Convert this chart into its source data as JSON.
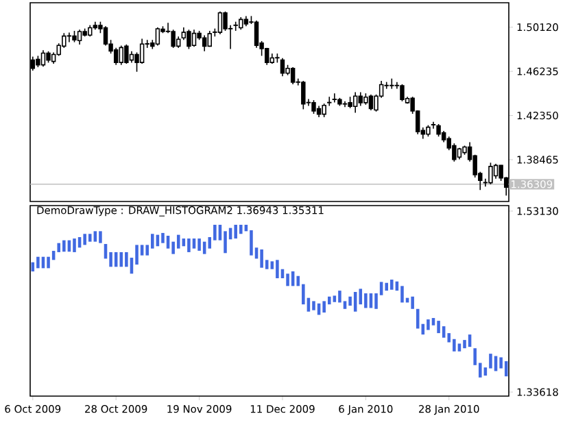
{
  "chart_data": [
    {
      "type": "candlestick",
      "color": "#000000",
      "categories": [
        null,
        null,
        null,
        null,
        null,
        null,
        null,
        null,
        null,
        null,
        null,
        null,
        null,
        null,
        null,
        null,
        null,
        null,
        null,
        null,
        null,
        null,
        null,
        null,
        null,
        null,
        null,
        null,
        null,
        null,
        null,
        null,
        null,
        null,
        null,
        null,
        null,
        null,
        null,
        null,
        null,
        null,
        null,
        null,
        null,
        null,
        null,
        null,
        null,
        null,
        null,
        null,
        null,
        null,
        null,
        null,
        null,
        null,
        null,
        null,
        null,
        null,
        null,
        null,
        null,
        null,
        null,
        null,
        null,
        null,
        null,
        null,
        null,
        null,
        null,
        null,
        null,
        null,
        null,
        null,
        null,
        null,
        null,
        null,
        null,
        null,
        null,
        null,
        null,
        null,
        null,
        null
      ],
      "tick_labels": "y",
      "ylim": [
        1.3479,
        1.5227
      ],
      "yticks": [
        {
          "value": 1.5012,
          "label": "1.50120"
        },
        {
          "value": 1.46235,
          "label": "1.46235"
        },
        {
          "value": 1.4235,
          "label": "1.42350"
        },
        {
          "value": 1.38465,
          "label": "1.38465"
        }
      ],
      "ref_lines": [
        {
          "axis": "y",
          "value": 1.36309,
          "label": "1.36309",
          "color": "#c0c0c0"
        }
      ],
      "ohlc": [
        [
          1.4723,
          1.4753,
          1.463,
          1.465
        ],
        [
          1.473,
          1.476,
          1.466,
          1.4681
        ],
        [
          1.4681,
          1.481,
          1.4665,
          1.4784
        ],
        [
          1.4784,
          1.48,
          1.47,
          1.4723
        ],
        [
          1.4711,
          1.479,
          1.469,
          1.4772
        ],
        [
          1.4772,
          1.487,
          1.476,
          1.4852
        ],
        [
          1.4845,
          1.496,
          1.483,
          1.4934
        ],
        [
          1.4934,
          1.4965,
          1.488,
          1.4936
        ],
        [
          1.4934,
          1.498,
          1.488,
          1.4901
        ],
        [
          1.4894,
          1.499,
          1.486,
          1.4974
        ],
        [
          1.4974,
          1.5,
          1.493,
          1.4942
        ],
        [
          1.4942,
          1.503,
          1.493,
          1.5007
        ],
        [
          1.5028,
          1.506,
          1.499,
          1.5007
        ],
        [
          1.5028,
          1.506,
          1.496,
          1.4998
        ],
        [
          1.5007,
          1.502,
          1.485,
          1.4864
        ],
        [
          1.4864,
          1.49,
          1.478,
          1.4803
        ],
        [
          1.4812,
          1.483,
          1.468,
          1.4702
        ],
        [
          1.4702,
          1.485,
          1.468,
          1.4833
        ],
        [
          1.4845,
          1.486,
          1.469,
          1.4702
        ],
        [
          1.4723,
          1.48,
          1.47,
          1.4772
        ],
        [
          1.4772,
          1.479,
          1.462,
          1.4702
        ],
        [
          1.4702,
          1.491,
          1.469,
          1.4864
        ],
        [
          1.4864,
          1.49,
          1.483,
          1.4866
        ],
        [
          1.4873,
          1.49,
          1.482,
          1.4845
        ],
        [
          1.4864,
          1.501,
          1.485,
          1.4998
        ],
        [
          1.4995,
          1.502,
          1.496,
          1.4974
        ],
        [
          1.4974,
          1.505,
          1.496,
          1.4976
        ],
        [
          1.4974,
          1.499,
          1.483,
          1.4845
        ],
        [
          1.4845,
          1.493,
          1.483,
          1.4906
        ],
        [
          1.4918,
          1.501,
          1.49,
          1.4967
        ],
        [
          1.4974,
          1.499,
          1.482,
          1.4845
        ],
        [
          1.4852,
          1.499,
          1.484,
          1.4958
        ],
        [
          1.4958,
          1.498,
          1.49,
          1.4918
        ],
        [
          1.4918,
          1.494,
          1.48,
          1.4845
        ],
        [
          1.4845,
          1.498,
          1.484,
          1.4955
        ],
        [
          1.4967,
          1.5,
          1.493,
          1.4969
        ],
        [
          1.4967,
          1.515,
          1.495,
          1.5138
        ],
        [
          1.5138,
          1.515,
          1.498,
          1.4998
        ],
        [
          1.4998,
          1.503,
          1.482,
          1.5
        ],
        [
          1.5028,
          1.506,
          1.498,
          1.503
        ],
        [
          1.5007,
          1.51,
          1.499,
          1.508
        ],
        [
          1.508,
          1.511,
          1.502,
          1.504
        ],
        [
          1.5056,
          1.511,
          1.504,
          1.5058
        ],
        [
          1.5056,
          1.507,
          1.483,
          1.4852
        ],
        [
          1.4873,
          1.489,
          1.476,
          1.4824
        ],
        [
          1.4824,
          1.483,
          1.468,
          1.4702
        ],
        [
          1.4702,
          1.478,
          1.469,
          1.4742
        ],
        [
          1.4742,
          1.478,
          1.47,
          1.4744
        ],
        [
          1.4723,
          1.474,
          1.458,
          1.4608
        ],
        [
          1.4608,
          1.468,
          1.459,
          1.465
        ],
        [
          1.465,
          1.466,
          1.451,
          1.4528
        ],
        [
          1.4528,
          1.456,
          1.45,
          1.453
        ],
        [
          1.4528,
          1.454,
          1.429,
          1.4336
        ],
        [
          1.4348,
          1.438,
          1.432,
          1.435
        ],
        [
          1.4348,
          1.437,
          1.425,
          1.4275
        ],
        [
          1.4296,
          1.432,
          1.422,
          1.4247
        ],
        [
          1.4247,
          1.434,
          1.422,
          1.4324
        ],
        [
          1.4348,
          1.44,
          1.432,
          1.435
        ],
        [
          1.4376,
          1.443,
          1.435,
          1.4378
        ],
        [
          1.4376,
          1.439,
          1.432,
          1.4336
        ],
        [
          1.4336,
          1.436,
          1.431,
          1.4338
        ],
        [
          1.4348,
          1.44,
          1.43,
          1.4315
        ],
        [
          1.4315,
          1.444,
          1.426,
          1.4406
        ],
        [
          1.4406,
          1.444,
          1.432,
          1.4348
        ],
        [
          1.4348,
          1.443,
          1.433,
          1.4397
        ],
        [
          1.4406,
          1.442,
          1.428,
          1.4296
        ],
        [
          1.4284,
          1.442,
          1.427,
          1.4406
        ],
        [
          1.4406,
          1.454,
          1.439,
          1.4507
        ],
        [
          1.4498,
          1.453,
          1.447,
          1.45
        ],
        [
          1.4498,
          1.456,
          1.447,
          1.45
        ],
        [
          1.4498,
          1.453,
          1.447,
          1.45
        ],
        [
          1.4498,
          1.451,
          1.436,
          1.4376
        ],
        [
          1.4348,
          1.44,
          1.434,
          1.4385
        ],
        [
          1.4388,
          1.44,
          1.425,
          1.4275
        ],
        [
          1.4275,
          1.428,
          1.407,
          1.4092
        ],
        [
          1.4104,
          1.413,
          1.403,
          1.4071
        ],
        [
          1.4071,
          1.415,
          1.405,
          1.4132
        ],
        [
          1.4153,
          1.418,
          1.412,
          1.4155
        ],
        [
          1.4144,
          1.416,
          1.405,
          1.4071
        ],
        [
          1.4083,
          1.41,
          1.4,
          1.4022
        ],
        [
          1.4031,
          1.405,
          1.393,
          1.3949
        ],
        [
          1.397,
          1.399,
          1.383,
          1.3848
        ],
        [
          1.3869,
          1.395,
          1.385,
          1.3942
        ],
        [
          1.3909,
          1.397,
          1.389,
          1.3958
        ],
        [
          1.3958,
          1.4,
          1.383,
          1.3848
        ],
        [
          1.3881,
          1.389,
          1.369,
          1.3714
        ],
        [
          1.3726,
          1.374,
          1.358,
          1.3665
        ],
        [
          1.3644,
          1.368,
          1.361,
          1.3646
        ],
        [
          1.3644,
          1.382,
          1.363,
          1.3787
        ],
        [
          1.3705,
          1.381,
          1.368,
          1.3796
        ],
        [
          1.3796,
          1.38,
          1.366,
          1.3686
        ],
        [
          1.3686,
          1.36943,
          1.35311,
          1.3604
        ]
      ]
    },
    {
      "type": "bar",
      "color": "#4169e1",
      "title": "DemoDrawType : DRAW_HISTOGRAM2 1.36943 1.35311",
      "categories": [
        "6 Oct 2009",
        null,
        null,
        null,
        null,
        null,
        null,
        null,
        null,
        null,
        null,
        null,
        null,
        null,
        null,
        null,
        "28 Oct 2009",
        null,
        null,
        null,
        null,
        null,
        null,
        null,
        null,
        null,
        null,
        null,
        null,
        null,
        null,
        null,
        "19 Nov 2009",
        null,
        null,
        null,
        null,
        null,
        null,
        null,
        null,
        null,
        null,
        null,
        null,
        null,
        null,
        null,
        "11 Dec 2009",
        null,
        null,
        null,
        null,
        null,
        null,
        null,
        null,
        null,
        null,
        null,
        null,
        null,
        null,
        null,
        "6 Jan 2010",
        null,
        null,
        null,
        null,
        null,
        null,
        null,
        null,
        null,
        null,
        null,
        null,
        null,
        null,
        null,
        "28 Jan 2010",
        null,
        null,
        null,
        null,
        null,
        null,
        null,
        null,
        null,
        null,
        null
      ],
      "ylim": [
        1.3318,
        1.5372
      ],
      "yticks": [
        {
          "value": 1.5313,
          "label": "1.53130"
        },
        {
          "value": 1.33618,
          "label": "1.33618"
        }
      ],
      "base": [
        1.4662,
        1.4697,
        1.4697,
        1.4697,
        1.4786,
        1.487,
        1.4875,
        1.4875,
        1.487,
        1.4919,
        1.4948,
        1.4983,
        1.4983,
        1.4968,
        1.48,
        1.4712,
        1.4712,
        1.4712,
        1.4712,
        1.4638,
        1.4736,
        1.4835,
        1.4835,
        1.4909,
        1.4934,
        1.4968,
        1.4909,
        1.485,
        1.4909,
        1.4934,
        1.487,
        1.4909,
        1.4885,
        1.485,
        1.4909,
        1.4998,
        1.4998,
        1.486,
        1.5008,
        1.5017,
        1.5067,
        1.5096,
        1.4835,
        1.48,
        1.4702,
        1.4687,
        1.4687,
        1.4589,
        1.4589,
        1.4505,
        1.4505,
        1.4505,
        1.4307,
        1.4229,
        1.4244,
        1.4194,
        1.4219,
        1.4307,
        1.4332,
        1.4327,
        1.4258,
        1.4293,
        1.4229,
        1.4307,
        1.4268,
        1.4268,
        1.4258,
        1.4406,
        1.4455,
        1.4465,
        1.4455,
        1.4327,
        1.4327,
        1.4258,
        1.4046,
        1.3982,
        1.4031,
        1.4081,
        1.3997,
        1.3948,
        1.3898,
        1.38,
        1.38,
        1.3834,
        1.3849,
        1.3652,
        1.3519,
        1.3539,
        1.3617,
        1.3588,
        1.3617,
        1.35311
      ],
      "values": [
        0.0099,
        0.0123,
        0.0123,
        0.0123,
        0.0098,
        0.0098,
        0.0123,
        0.0123,
        0.0147,
        0.0113,
        0.0119,
        0.0084,
        0.0113,
        0.0128,
        0.0158,
        0.0158,
        0.0158,
        0.0158,
        0.0158,
        0.0172,
        0.0212,
        0.0113,
        0.0113,
        0.0158,
        0.0123,
        0.0109,
        0.0138,
        0.0133,
        0.0148,
        0.0083,
        0.0147,
        0.0108,
        0.0132,
        0.0133,
        0.0123,
        0.0167,
        0.0167,
        0.0236,
        0.0123,
        0.0148,
        0.0098,
        0.0069,
        0.0271,
        0.0119,
        0.0197,
        0.0099,
        0.0084,
        0.0197,
        0.0098,
        0.0133,
        0.0158,
        0.0108,
        0.0218,
        0.0148,
        0.0098,
        0.0123,
        0.0123,
        0.0084,
        0.0069,
        0.0128,
        0.0084,
        0.0098,
        0.0212,
        0.0168,
        0.0158,
        0.0158,
        0.0168,
        0.0143,
        0.0084,
        0.0109,
        0.0099,
        0.0178,
        0.005,
        0.0133,
        0.0212,
        0.0114,
        0.0114,
        0.0079,
        0.0133,
        0.0123,
        0.0099,
        0.0133,
        0.0084,
        0.0089,
        0.0133,
        0.0182,
        0.0157,
        0.0088,
        0.0158,
        0.0162,
        0.0119,
        0.01632
      ]
    }
  ]
}
